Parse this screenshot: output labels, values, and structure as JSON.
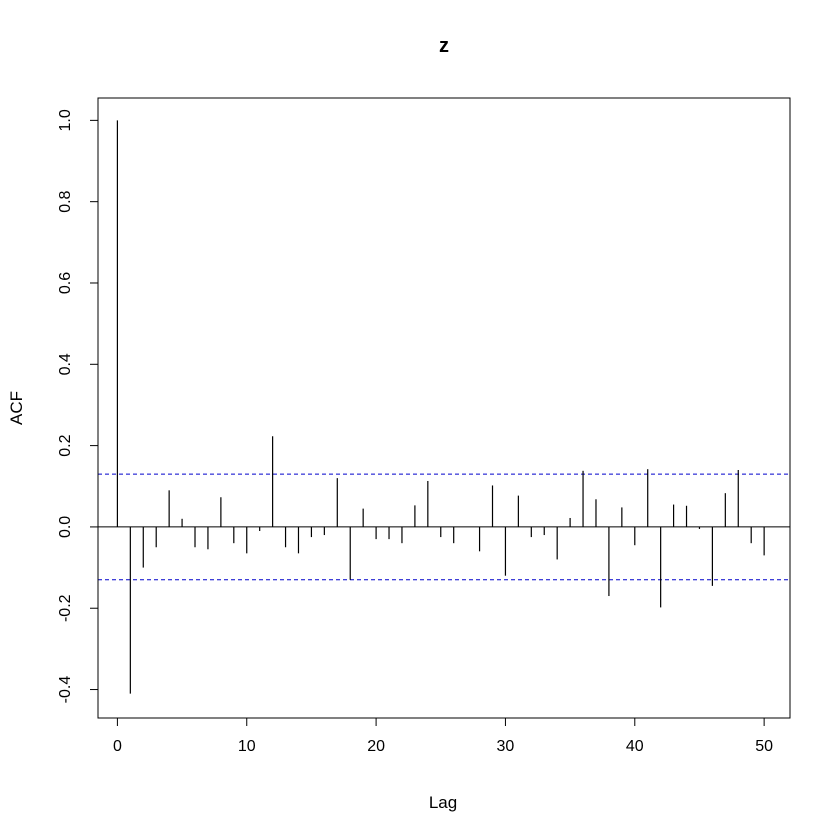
{
  "chart_data": {
    "type": "bar",
    "title": "z",
    "xlabel": "Lag",
    "ylabel": "ACF",
    "xlim": [
      -1.5,
      52
    ],
    "ylim": [
      -0.47,
      1.055
    ],
    "x_ticks": [
      0,
      10,
      20,
      30,
      40,
      50
    ],
    "y_ticks": [
      -0.4,
      -0.2,
      0.0,
      0.2,
      0.4,
      0.6,
      0.8,
      1.0
    ],
    "y_tick_labels": [
      "-0.4",
      "-0.2",
      "0.0",
      "0.2",
      "0.4",
      "0.6",
      "0.8",
      "1.0"
    ],
    "confidence_bound": 0.13,
    "grid": false,
    "colors": {
      "bars": "#000000",
      "confidence": "#0000cc",
      "zero_line": "#000000"
    },
    "lags": [
      0,
      1,
      2,
      3,
      4,
      5,
      6,
      7,
      8,
      9,
      10,
      11,
      12,
      13,
      14,
      15,
      16,
      17,
      18,
      19,
      20,
      21,
      22,
      23,
      24,
      25,
      26,
      27,
      28,
      29,
      30,
      31,
      32,
      33,
      34,
      35,
      36,
      37,
      38,
      39,
      40,
      41,
      42,
      43,
      44,
      45,
      46,
      47,
      48,
      49,
      50
    ],
    "acf": [
      1.0,
      -0.41,
      -0.1,
      -0.05,
      0.09,
      0.02,
      -0.05,
      -0.055,
      0.073,
      -0.04,
      -0.065,
      -0.01,
      0.223,
      -0.05,
      -0.065,
      -0.025,
      -0.02,
      0.12,
      -0.13,
      0.045,
      -0.03,
      -0.03,
      -0.04,
      0.053,
      0.113,
      -0.025,
      -0.04,
      0.0,
      -0.06,
      0.102,
      -0.12,
      0.077,
      -0.025,
      -0.02,
      -0.08,
      0.022,
      0.138,
      0.068,
      -0.17,
      0.048,
      -0.045,
      0.142,
      -0.198,
      0.055,
      0.052,
      -0.005,
      -0.145,
      0.083,
      0.14,
      -0.04,
      -0.07
    ]
  }
}
